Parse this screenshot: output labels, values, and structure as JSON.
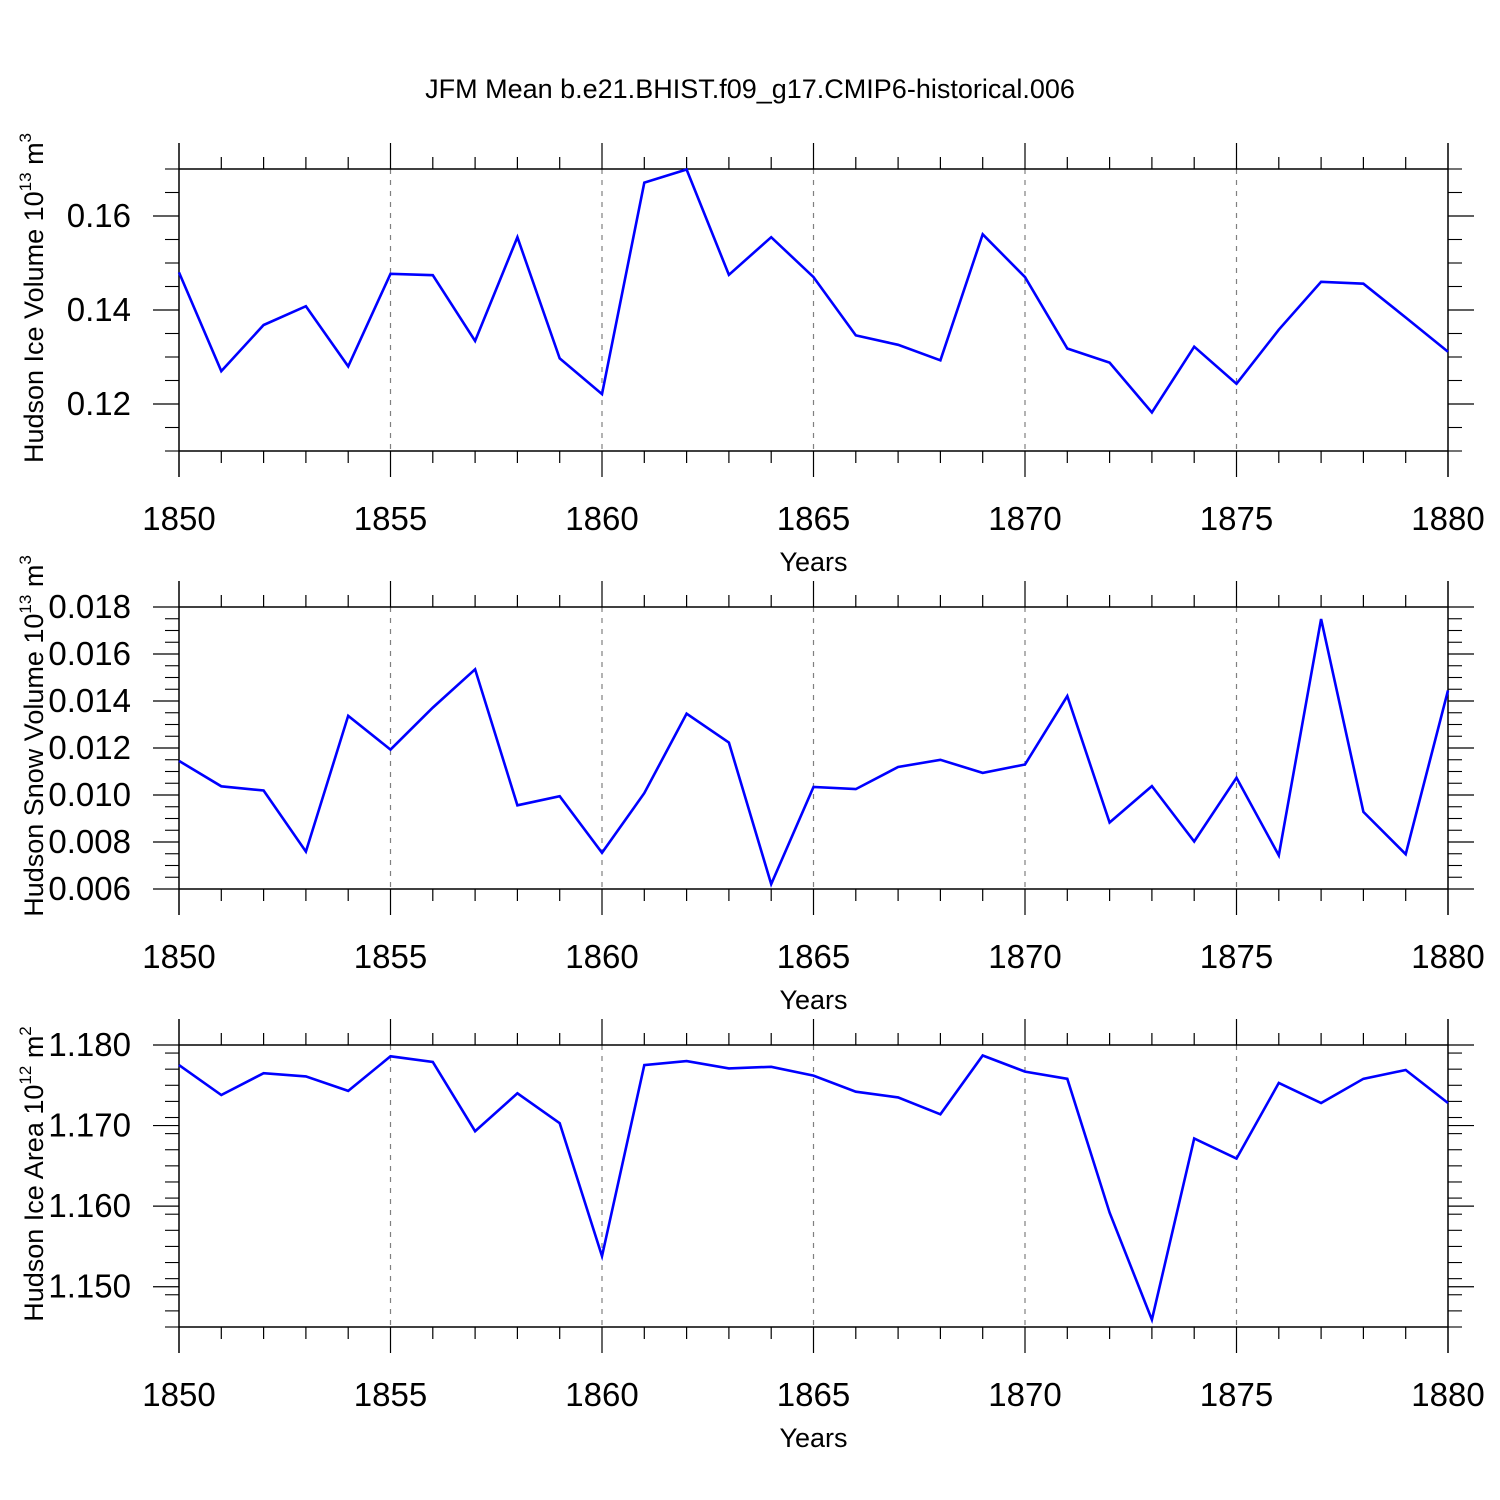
{
  "title": "JFM Mean b.e21.BHIST.f09_g17.CMIP6-historical.006",
  "colors": {
    "line": "#0000ff",
    "axes": "#000000",
    "grid": "#808080"
  },
  "chart_data": [
    {
      "type": "line",
      "name": "ice-volume",
      "ylabel_main": "Hudson Ice Volume 10",
      "ylabel_exp": "13",
      "ylabel_unit": "m",
      "ylabel_unit_exp": "3",
      "xlabel": "Years",
      "xlim": [
        1850,
        1880
      ],
      "ylim": [
        0.11,
        0.17
      ],
      "xticks": [
        1850,
        1855,
        1860,
        1865,
        1870,
        1875,
        1880
      ],
      "yticks": [
        0.12,
        0.14,
        0.16
      ],
      "ytick_labels": [
        "0.12",
        "0.14",
        "0.16"
      ],
      "yminor_step": 0.005,
      "grid_x": true,
      "series": [
        {
          "name": "Hudson Ice Volume",
          "x": [
            1850,
            1851,
            1852,
            1853,
            1854,
            1855,
            1856,
            1857,
            1858,
            1859,
            1860,
            1861,
            1862,
            1863,
            1864,
            1865,
            1866,
            1867,
            1868,
            1869,
            1870,
            1871,
            1872,
            1873,
            1874,
            1875,
            1876,
            1877,
            1878,
            1879,
            1880
          ],
          "values": [
            0.148,
            0.127,
            0.1368,
            0.1408,
            0.128,
            0.1477,
            0.1474,
            0.1334,
            0.1555,
            0.1297,
            0.1221,
            0.1671,
            0.1699,
            0.1475,
            0.1555,
            0.147,
            0.1346,
            0.1326,
            0.1293,
            0.1561,
            0.147,
            0.1318,
            0.1288,
            0.1182,
            0.1322,
            0.1243,
            0.1358,
            0.146,
            0.1456,
            0.1384,
            0.1311
          ]
        }
      ]
    },
    {
      "type": "line",
      "name": "snow-volume",
      "ylabel_main": "Hudson Snow Volume 10",
      "ylabel_exp": "13",
      "ylabel_unit": "m",
      "ylabel_unit_exp": "3",
      "xlabel": "Years",
      "xlim": [
        1850,
        1880
      ],
      "ylim": [
        0.006,
        0.018
      ],
      "xticks": [
        1850,
        1855,
        1860,
        1865,
        1870,
        1875,
        1880
      ],
      "yticks": [
        0.006,
        0.008,
        0.01,
        0.012,
        0.014,
        0.016,
        0.018
      ],
      "ytick_labels": [
        "0.006",
        "0.008",
        "0.010",
        "0.012",
        "0.014",
        "0.016",
        "0.018"
      ],
      "yminor_step": 0.0005,
      "grid_x": true,
      "series": [
        {
          "name": "Hudson Snow Volume",
          "x": [
            1850,
            1851,
            1852,
            1853,
            1854,
            1855,
            1856,
            1857,
            1858,
            1859,
            1860,
            1861,
            1862,
            1863,
            1864,
            1865,
            1866,
            1867,
            1868,
            1869,
            1870,
            1871,
            1872,
            1873,
            1874,
            1875,
            1876,
            1877,
            1878,
            1879,
            1880
          ],
          "values": [
            0.01145,
            0.01037,
            0.01019,
            0.00759,
            0.01337,
            0.01193,
            0.01372,
            0.01535,
            0.00956,
            0.00995,
            0.00754,
            0.01008,
            0.01346,
            0.01223,
            0.00621,
            0.01034,
            0.01025,
            0.01119,
            0.0115,
            0.01094,
            0.0113,
            0.01421,
            0.00883,
            0.01038,
            0.00802,
            0.01073,
            0.00743,
            0.01749,
            0.00928,
            0.00748,
            0.01445
          ]
        }
      ]
    },
    {
      "type": "line",
      "name": "ice-area",
      "ylabel_main": "Hudson Ice Area 10",
      "ylabel_exp": "12",
      "ylabel_unit": "m",
      "ylabel_unit_exp": "2",
      "xlabel": "Years",
      "xlim": [
        1850,
        1880
      ],
      "ylim": [
        1.145,
        1.18
      ],
      "xticks": [
        1850,
        1855,
        1860,
        1865,
        1870,
        1875,
        1880
      ],
      "yticks": [
        1.15,
        1.16,
        1.17,
        1.18
      ],
      "ytick_labels": [
        "1.150",
        "1.160",
        "1.170",
        "1.180"
      ],
      "yminor_step": 0.002,
      "grid_x": true,
      "series": [
        {
          "name": "Hudson Ice Area",
          "x": [
            1850,
            1851,
            1852,
            1853,
            1854,
            1855,
            1856,
            1857,
            1858,
            1859,
            1860,
            1861,
            1862,
            1863,
            1864,
            1865,
            1866,
            1867,
            1868,
            1869,
            1870,
            1871,
            1872,
            1873,
            1874,
            1875,
            1876,
            1877,
            1878,
            1879,
            1880
          ],
          "values": [
            1.1775,
            1.1738,
            1.1765,
            1.1761,
            1.1743,
            1.1786,
            1.1779,
            1.1693,
            1.174,
            1.1703,
            1.1538,
            1.1775,
            1.178,
            1.1771,
            1.1773,
            1.1762,
            1.1742,
            1.1735,
            1.1714,
            1.1787,
            1.1767,
            1.1758,
            1.1592,
            1.1459,
            1.1684,
            1.1659,
            1.1753,
            1.1728,
            1.1758,
            1.1769,
            1.1728
          ]
        }
      ]
    }
  ]
}
